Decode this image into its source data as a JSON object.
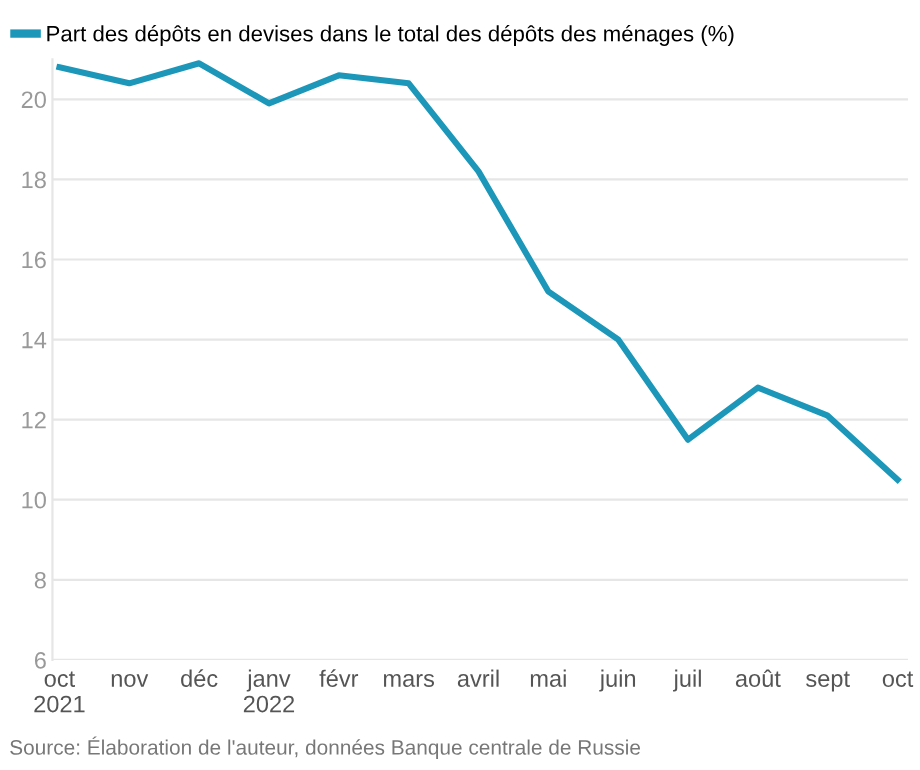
{
  "chart_data": {
    "type": "line",
    "categories": [
      "oct\n2021",
      "nov",
      "déc",
      "janv\n2022",
      "févr",
      "mars",
      "avril",
      "mai",
      "juin",
      "juil",
      "août",
      "sept",
      "oct"
    ],
    "series": [
      {
        "name": "Part des dépôts en devises dans le total des dépôts des ménages (%)",
        "color": "#1d97b9",
        "values": [
          20.8,
          20.4,
          20.9,
          19.9,
          20.6,
          20.4,
          18.2,
          15.2,
          14.0,
          11.5,
          12.8,
          12.1,
          10.5
        ]
      }
    ],
    "ylim": [
      6,
      21
    ],
    "yticks": [
      6,
      8,
      10,
      12,
      14,
      16,
      18,
      20
    ],
    "grid": "y",
    "legend": "top left",
    "marker": "none",
    "line_style": "solid",
    "annotations": [
      "Source: Élaboration de l'auteur, données Banque centrale de Russie"
    ]
  }
}
